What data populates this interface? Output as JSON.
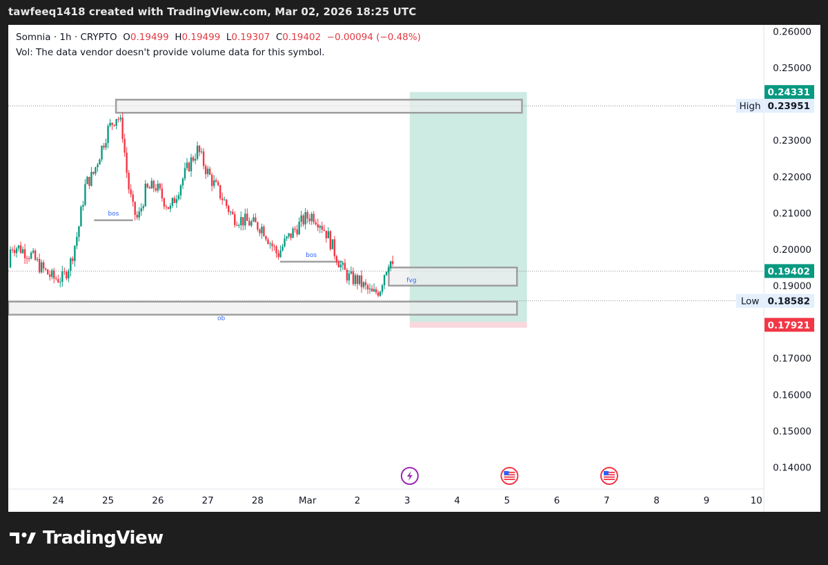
{
  "header": {
    "credit": "tawfeeq1418 created with TradingView.com, Mar 02, 2026 18:25 UTC"
  },
  "legend": {
    "symbol": "Somnia · 1h · CRYPTO",
    "o_label": "O",
    "o_value": "0.19499",
    "h_label": "H",
    "h_value": "0.19499",
    "l_label": "L",
    "l_value": "0.19307",
    "c_label": "C",
    "c_value": "0.19402",
    "change": "−0.00094 (−0.48%)",
    "volume_note": "Vol: The data vendor doesn't provide volume data for this symbol."
  },
  "brand": {
    "name": "TradingView"
  },
  "chart_data": {
    "type": "candlestick",
    "symbol": "Somnia",
    "interval": "1h",
    "exchange": "CRYPTO",
    "ohlc_last": {
      "open": 0.19499,
      "high": 0.19499,
      "low": 0.19307,
      "close": 0.19402,
      "change": -0.00094,
      "change_pct": -0.48
    },
    "ylim": [
      0.134,
      0.2618
    ],
    "y_ticks": [
      "0.26000",
      "0.25000",
      "0.24000",
      "0.23000",
      "0.22000",
      "0.21000",
      "0.20000",
      "0.19000",
      "0.18000",
      "0.17000",
      "0.16000",
      "0.15000",
      "0.14000"
    ],
    "x_ticks": [
      "24",
      "25",
      "26",
      "27",
      "28",
      "Mar",
      "2",
      "3",
      "4",
      "5",
      "6",
      "7",
      "8",
      "9",
      "10"
    ],
    "x_range_days": [
      23.0,
      38.15
    ],
    "price_path": [
      [
        23.0,
        0.195
      ],
      [
        23.05,
        0.201
      ],
      [
        23.2,
        0.2005
      ],
      [
        23.45,
        0.1985
      ],
      [
        23.65,
        0.195
      ],
      [
        23.9,
        0.192
      ],
      [
        24.1,
        0.192
      ],
      [
        24.25,
        0.1965
      ],
      [
        24.4,
        0.205
      ],
      [
        24.55,
        0.218
      ],
      [
        24.7,
        0.2205
      ],
      [
        24.85,
        0.227
      ],
      [
        25.0,
        0.233
      ],
      [
        25.18,
        0.237
      ],
      [
        25.28,
        0.2335
      ],
      [
        25.4,
        0.218
      ],
      [
        25.5,
        0.211
      ],
      [
        25.6,
        0.208
      ],
      [
        25.75,
        0.216
      ],
      [
        25.95,
        0.2175
      ],
      [
        26.1,
        0.214
      ],
      [
        26.25,
        0.211
      ],
      [
        26.45,
        0.218
      ],
      [
        26.65,
        0.224
      ],
      [
        26.8,
        0.2275
      ],
      [
        26.95,
        0.2225
      ],
      [
        27.1,
        0.2185
      ],
      [
        27.3,
        0.214
      ],
      [
        27.5,
        0.209
      ],
      [
        27.7,
        0.208
      ],
      [
        27.9,
        0.207
      ],
      [
        28.1,
        0.206
      ],
      [
        28.25,
        0.202
      ],
      [
        28.4,
        0.1985
      ],
      [
        28.55,
        0.202
      ],
      [
        28.75,
        0.2055
      ],
      [
        28.95,
        0.2085
      ],
      [
        29.1,
        0.2095
      ],
      [
        29.25,
        0.2075
      ],
      [
        29.4,
        0.204
      ],
      [
        29.55,
        0.199
      ],
      [
        29.7,
        0.1945
      ],
      [
        29.85,
        0.192
      ],
      [
        30.0,
        0.1915
      ],
      [
        30.15,
        0.1895
      ],
      [
        30.3,
        0.1875
      ],
      [
        30.45,
        0.189
      ],
      [
        30.55,
        0.194
      ],
      [
        30.65,
        0.1975
      ],
      [
        30.72,
        0.194
      ]
    ],
    "zones": [
      {
        "label": "",
        "y_low": 0.2376,
        "y_high": 0.2412,
        "x_start": 25.16,
        "x_end": 33.3
      },
      {
        "label": "fvg",
        "y_low": 0.19,
        "y_high": 0.195,
        "x_start": 30.63,
        "x_end": 33.2
      },
      {
        "label": "ob",
        "y_low": 0.182,
        "y_high": 0.1856,
        "x_start": 23.0,
        "x_end": 33.2
      }
    ],
    "bos_lines": [
      {
        "label": "bos",
        "y": 0.208,
        "x_start": 24.72,
        "x_end": 25.5
      },
      {
        "label": "bos",
        "y": 0.1966,
        "x_start": 28.45,
        "x_end": 29.7
      }
    ],
    "long_position": {
      "x_start": 31.05,
      "x_end": 33.4,
      "target": 0.24331,
      "entry": 0.18,
      "stop": 0.17921,
      "profit_color": "#cdeae3",
      "loss_color": "#f9d7dc"
    },
    "price_labels": [
      {
        "text": "0.24331",
        "y": 0.24331,
        "bg": "#089981",
        "fg": "#ffffff",
        "tag": ""
      },
      {
        "text": "0.23951",
        "y": 0.23951,
        "bg": "#e3effd",
        "fg": "#131722",
        "tag": "High"
      },
      {
        "text": "0.19402",
        "y": 0.19402,
        "bg": "#089981",
        "fg": "#ffffff",
        "tag": ""
      },
      {
        "text": "0.18582",
        "y": 0.18582,
        "bg": "#e3effd",
        "fg": "#131722",
        "tag": "Low"
      },
      {
        "text": "0.17921",
        "y": 0.17921,
        "bg": "#f23645",
        "fg": "#ffffff",
        "tag": ""
      }
    ],
    "dotted_levels": [
      0.23951,
      0.19402,
      0.18582
    ],
    "events": [
      {
        "icon": "lightning-event-icon",
        "x": 31.05,
        "color": "#9c27b0"
      },
      {
        "icon": "us-flag-event-icon",
        "x": 33.05,
        "color": "#f23645"
      },
      {
        "icon": "us-flag-event-icon",
        "x": 35.05,
        "color": "#f23645"
      }
    ],
    "colors": {
      "up": "#089981",
      "down": "#f23645",
      "zone_stroke": "#9e9e9e",
      "zone_fill": "#eeeeee",
      "bos": "#9e9e9e",
      "label_text": "#2962ff"
    }
  }
}
